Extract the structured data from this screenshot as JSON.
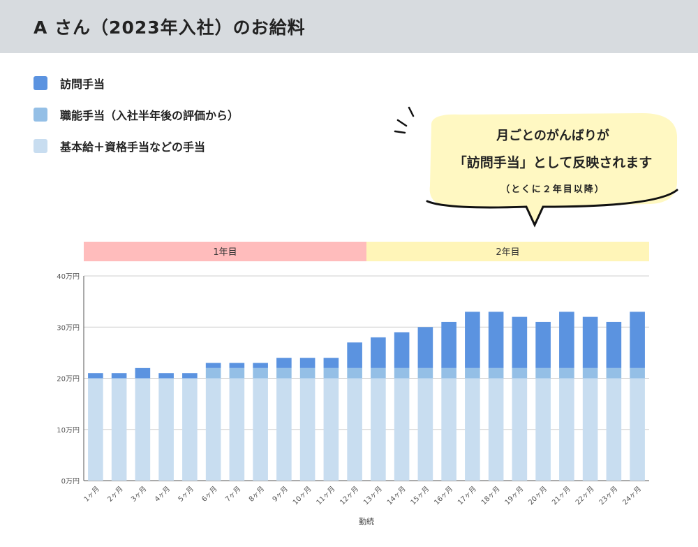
{
  "header": {
    "title": "A さん（2023年入社）のお給料"
  },
  "colors": {
    "visit": "#5b93e0",
    "skill": "#94bfe6",
    "base": "#c8ddf0",
    "year1": "#ffbcbc",
    "year2": "#fff5b8",
    "callout": "#fff8c2",
    "header_bg": "#d7dbdf"
  },
  "legend": {
    "items": [
      {
        "label": "訪問手当",
        "color": "#5b93e0"
      },
      {
        "label": "職能手当（入社半年後の評価から）",
        "color": "#94bfe6"
      },
      {
        "label": "基本給＋資格手当などの手当",
        "color": "#c8ddf0"
      }
    ]
  },
  "callout": {
    "line1": "月ごとのがんばりが",
    "line2": "「訪問手当」として反映されます",
    "line3": "（とくに２年目以降）"
  },
  "chart_data": {
    "type": "bar",
    "stacked": true,
    "title": "A さん（2023年入社）のお給料",
    "xlabel": "勤続",
    "ylabel": "",
    "ylim": [
      0,
      40
    ],
    "y_ticks": [
      0,
      10,
      20,
      30,
      40
    ],
    "y_tick_labels": [
      "0万円",
      "10万円",
      "20万円",
      "30万円",
      "40万円"
    ],
    "grid": true,
    "categories": [
      "1ヶ月",
      "2ヶ月",
      "3ヶ月",
      "4ヶ月",
      "5ヶ月",
      "6ヶ月",
      "7ヶ月",
      "8ヶ月",
      "9ヶ月",
      "10ヶ月",
      "11ヶ月",
      "12ヶ月",
      "13ヶ月",
      "14ヶ月",
      "15ヶ月",
      "16ヶ月",
      "17ヶ月",
      "18ヶ月",
      "19ヶ月",
      "20ヶ月",
      "21ヶ月",
      "22ヶ月",
      "23ヶ月",
      "24ヶ月"
    ],
    "series": [
      {
        "name": "基本給＋資格手当などの手当",
        "color": "#c8ddf0",
        "values": [
          20,
          20,
          20,
          20,
          20,
          20,
          20,
          20,
          20,
          20,
          20,
          20,
          20,
          20,
          20,
          20,
          20,
          20,
          20,
          20,
          20,
          20,
          20,
          20
        ]
      },
      {
        "name": "職能手当（入社半年後の評価から）",
        "color": "#94bfe6",
        "values": [
          0,
          0,
          0,
          0,
          0,
          2,
          2,
          2,
          2,
          2,
          2,
          2,
          2,
          2,
          2,
          2,
          2,
          2,
          2,
          2,
          2,
          2,
          2,
          2
        ]
      },
      {
        "name": "訪問手当",
        "color": "#5b93e0",
        "values": [
          1,
          1,
          2,
          1,
          1,
          1,
          1,
          1,
          2,
          2,
          2,
          5,
          6,
          7,
          8,
          9,
          11,
          11,
          10,
          9,
          11,
          10,
          9,
          11
        ]
      }
    ],
    "period_bands": [
      {
        "label": "1年目",
        "from_index": 0,
        "to_index": 11,
        "color": "#ffbcbc"
      },
      {
        "label": "2年目",
        "from_index": 12,
        "to_index": 23,
        "color": "#fff5b8"
      }
    ]
  }
}
